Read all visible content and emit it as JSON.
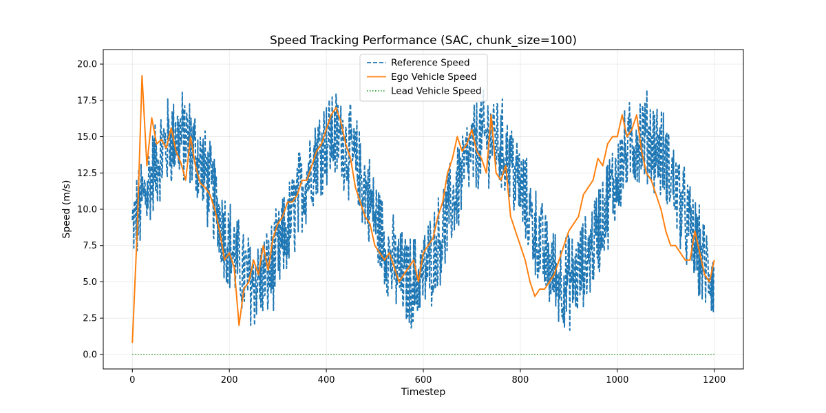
{
  "chart_data": {
    "type": "line",
    "title": "Speed Tracking Performance (SAC, chunk_size=100)",
    "xlabel": "Timestep",
    "ylabel": "Speed (m/s)",
    "xlim": [
      -60,
      1260
    ],
    "ylim": [
      -1.0,
      21.0
    ],
    "xticks": [
      0,
      200,
      400,
      600,
      800,
      1000,
      1200
    ],
    "xtick_labels": [
      "0",
      "200",
      "400",
      "600",
      "800",
      "1000",
      "1200"
    ],
    "yticks": [
      0.0,
      2.5,
      5.0,
      7.5,
      10.0,
      12.5,
      15.0,
      17.5,
      20.0
    ],
    "ytick_labels": [
      "0.0",
      "2.5",
      "5.0",
      "7.5",
      "10.0",
      "12.5",
      "15.0",
      "17.5",
      "20.0"
    ],
    "grid": true,
    "legend_position": "upper-center",
    "series": [
      {
        "name": "Reference Speed",
        "color": "#1f77b4",
        "style": "dashed",
        "kind": "noisy-sine",
        "n_points": 1200,
        "center": 10.0,
        "amplitude": 5.0,
        "period": 320,
        "noise_amplitude": 3.0,
        "min": 0.7,
        "max": 19.9
      },
      {
        "name": "Ego Vehicle Speed",
        "color": "#ff7f0e",
        "style": "solid",
        "x": [
          0,
          10,
          20,
          30,
          40,
          50,
          60,
          70,
          80,
          90,
          100,
          110,
          120,
          130,
          140,
          150,
          160,
          170,
          180,
          190,
          200,
          210,
          220,
          230,
          240,
          250,
          260,
          270,
          280,
          290,
          300,
          310,
          320,
          330,
          340,
          350,
          360,
          370,
          380,
          390,
          400,
          410,
          420,
          430,
          440,
          450,
          460,
          470,
          480,
          490,
          500,
          510,
          520,
          530,
          540,
          550,
          560,
          570,
          580,
          590,
          600,
          610,
          620,
          630,
          640,
          650,
          660,
          670,
          680,
          690,
          700,
          710,
          720,
          730,
          740,
          750,
          760,
          770,
          780,
          790,
          800,
          810,
          820,
          830,
          840,
          850,
          860,
          870,
          880,
          890,
          900,
          910,
          920,
          930,
          940,
          950,
          960,
          970,
          980,
          990,
          1000,
          1010,
          1020,
          1030,
          1040,
          1050,
          1060,
          1070,
          1080,
          1090,
          1100,
          1110,
          1120,
          1130,
          1140,
          1150,
          1160,
          1170,
          1180,
          1190,
          1200
        ],
        "y": [
          0.8,
          8.5,
          19.2,
          13.0,
          16.3,
          14.5,
          14.8,
          14.2,
          15.6,
          14.0,
          13.2,
          12.0,
          15.0,
          13.0,
          11.8,
          11.5,
          11.0,
          10.0,
          8.5,
          6.5,
          7.0,
          6.0,
          2.0,
          4.5,
          5.0,
          6.5,
          5.5,
          7.5,
          5.8,
          8.0,
          9.0,
          9.5,
          10.5,
          10.5,
          11.0,
          12.0,
          12.0,
          13.0,
          14.0,
          14.5,
          15.5,
          16.5,
          17.0,
          16.0,
          14.5,
          13.5,
          11.5,
          10.5,
          9.5,
          9.0,
          7.5,
          7.0,
          6.5,
          7.0,
          6.0,
          5.0,
          5.5,
          6.0,
          6.5,
          5.0,
          7.0,
          7.5,
          8.0,
          9.5,
          10.5,
          12.5,
          13.5,
          15.0,
          14.0,
          14.5,
          15.5,
          14.0,
          13.5,
          12.5,
          16.5,
          12.5,
          12.0,
          13.0,
          9.5,
          8.5,
          7.5,
          6.5,
          5.0,
          4.0,
          4.5,
          4.5,
          5.0,
          5.5,
          6.5,
          7.5,
          8.5,
          9.0,
          9.5,
          11.0,
          11.5,
          12.0,
          13.5,
          13.0,
          14.5,
          15.0,
          15.0,
          16.5,
          15.0,
          15.5,
          16.5,
          14.0,
          12.5,
          12.0,
          11.0,
          10.0,
          8.5,
          7.5,
          7.5,
          7.0,
          6.5,
          6.5,
          8.5,
          7.0,
          5.5,
          5.0,
          6.5
        ]
      },
      {
        "name": "Lead Vehicle Speed",
        "color": "#2ca02c",
        "style": "dotted",
        "x": [
          0,
          1200
        ],
        "y": [
          0.0,
          0.0
        ]
      }
    ]
  }
}
